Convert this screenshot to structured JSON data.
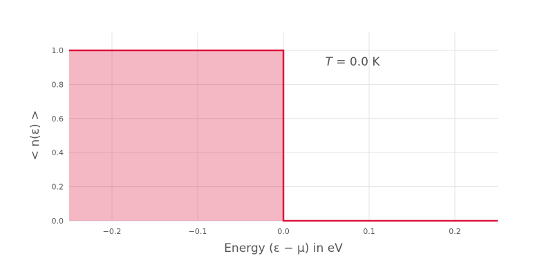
{
  "chart_data": {
    "type": "area",
    "xlabel": "Energy (ε − μ) in eV",
    "ylabel": "< n(ε) >",
    "xlim": [
      -0.25,
      0.25
    ],
    "ylim": [
      0.0,
      1.0
    ],
    "xticks": [
      -0.2,
      -0.1,
      0.0,
      0.1,
      0.2
    ],
    "xtick_labels": [
      "−0.2",
      "−0.1",
      "0.0",
      "0.1",
      "0.2"
    ],
    "yticks": [
      0.0,
      0.2,
      0.4,
      0.6,
      0.8,
      1.0
    ],
    "ytick_labels": [
      "0.0",
      "0.2",
      "0.4",
      "0.6",
      "0.8",
      "1.0"
    ],
    "grid": true,
    "series": [
      {
        "x": [
          -0.25,
          0.0,
          0.0,
          0.25
        ],
        "y": [
          1.0,
          1.0,
          0.0,
          0.0
        ],
        "color": "#dc143c",
        "fill_color": "#dc143c",
        "fill_opacity": 0.3
      }
    ],
    "annotation": {
      "text": "T = 0.0 K",
      "symbol": "T",
      "rest": " = 0.0 K",
      "x": 0.1,
      "y": 0.92
    }
  }
}
